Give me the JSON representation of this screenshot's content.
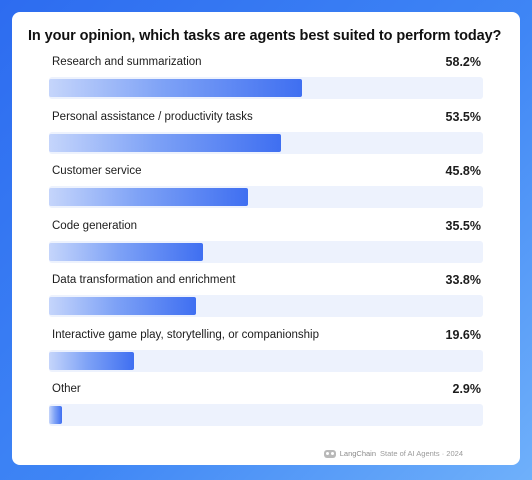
{
  "chart_data": {
    "type": "bar",
    "orientation": "horizontal",
    "title": "In your opinion, which tasks are agents best suited to perform today?",
    "categories": [
      "Research and summarization",
      "Personal assistance / productivity tasks",
      "Customer service",
      "Code generation",
      "Data transformation and enrichment",
      "Interactive game play, storytelling, or companionship",
      "Other"
    ],
    "values": [
      58.2,
      53.5,
      45.8,
      35.5,
      33.8,
      19.6,
      2.9
    ],
    "value_labels": [
      "58.2%",
      "53.5%",
      "45.8%",
      "35.5%",
      "33.8%",
      "19.6%",
      "2.9%"
    ],
    "xlim": [
      0,
      100
    ],
    "grid": false,
    "legend": "none",
    "colors": {
      "fill_start": "#c5d5fb",
      "fill_end": "#3f6ff1",
      "track": "#edf2fd"
    }
  },
  "footer": {
    "brand": "LangChain",
    "source": "State of AI Agents · 2024",
    "icon": "langchain-logo-icon"
  }
}
